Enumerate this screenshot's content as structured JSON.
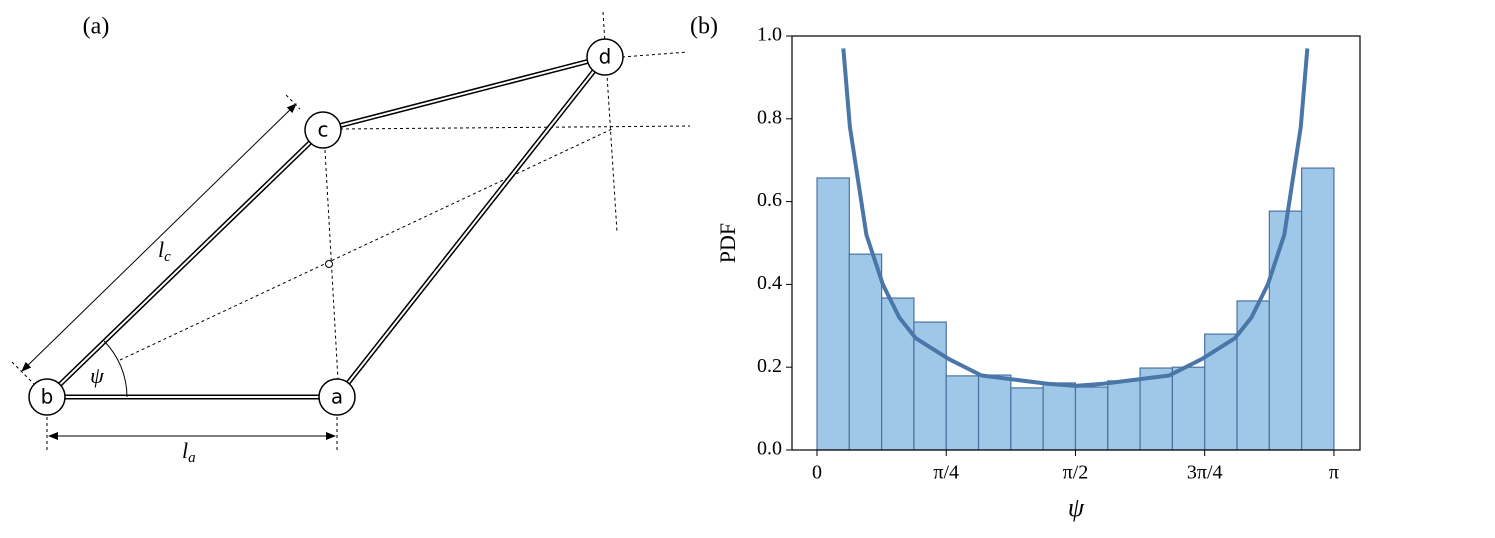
{
  "diagram": {
    "panel_label": "(a)",
    "nodes": [
      {
        "label": "a"
      },
      {
        "label": "b"
      },
      {
        "label": "c"
      },
      {
        "label": "d"
      }
    ],
    "angle_label": "ψ",
    "length_labels": [
      {
        "base": "l",
        "sub": "c"
      },
      {
        "base": "l",
        "sub": "a"
      }
    ]
  },
  "chart_data": {
    "type": "histogram",
    "panel_label": "(b)",
    "xlabel": "ψ",
    "ylabel": "PDF",
    "bins": [
      0,
      0.19635,
      0.3927,
      0.58905,
      0.7854,
      0.98175,
      1.1781,
      1.37445,
      1.5708,
      1.76715,
      1.9635,
      2.15985,
      2.35619,
      2.55254,
      2.74889,
      2.94524,
      3.14159
    ],
    "values": [
      0.657,
      0.473,
      0.367,
      0.309,
      0.179,
      0.181,
      0.15,
      0.162,
      0.152,
      0.167,
      0.198,
      0.2,
      0.28,
      0.36,
      0.577,
      0.681
    ],
    "color": "#9fc8e8",
    "edgecolor": "#4a72a0",
    "curve": {
      "color": "#4a76a8",
      "x": [
        0.16,
        0.2,
        0.3,
        0.4,
        0.5,
        0.6,
        0.8,
        1.0,
        1.2,
        1.4,
        1.5708,
        1.74,
        1.94,
        2.14,
        2.34,
        2.54,
        2.64,
        2.74,
        2.84,
        2.94,
        2.98
      ],
      "values": [
        0.97,
        0.78,
        0.52,
        0.4,
        0.32,
        0.27,
        0.22,
        0.18,
        0.17,
        0.16,
        0.155,
        0.16,
        0.17,
        0.18,
        0.22,
        0.27,
        0.32,
        0.4,
        0.52,
        0.78,
        0.97
      ]
    },
    "xlim": [
      -0.152,
      3.3
    ],
    "ylim": [
      0,
      1
    ],
    "xticks": [
      {
        "value": 0,
        "label": "0"
      },
      {
        "value": 0.7854,
        "label": "π/4"
      },
      {
        "value": 1.5708,
        "label": "π/2"
      },
      {
        "value": 2.35619,
        "label": "3π/4"
      },
      {
        "value": 3.14159,
        "label": "π"
      }
    ],
    "yticks": [
      {
        "value": 0,
        "label": "0.0"
      },
      0.2,
      0.4,
      0.6,
      0.8,
      {
        "value": 1,
        "label": "1.0"
      }
    ]
  }
}
